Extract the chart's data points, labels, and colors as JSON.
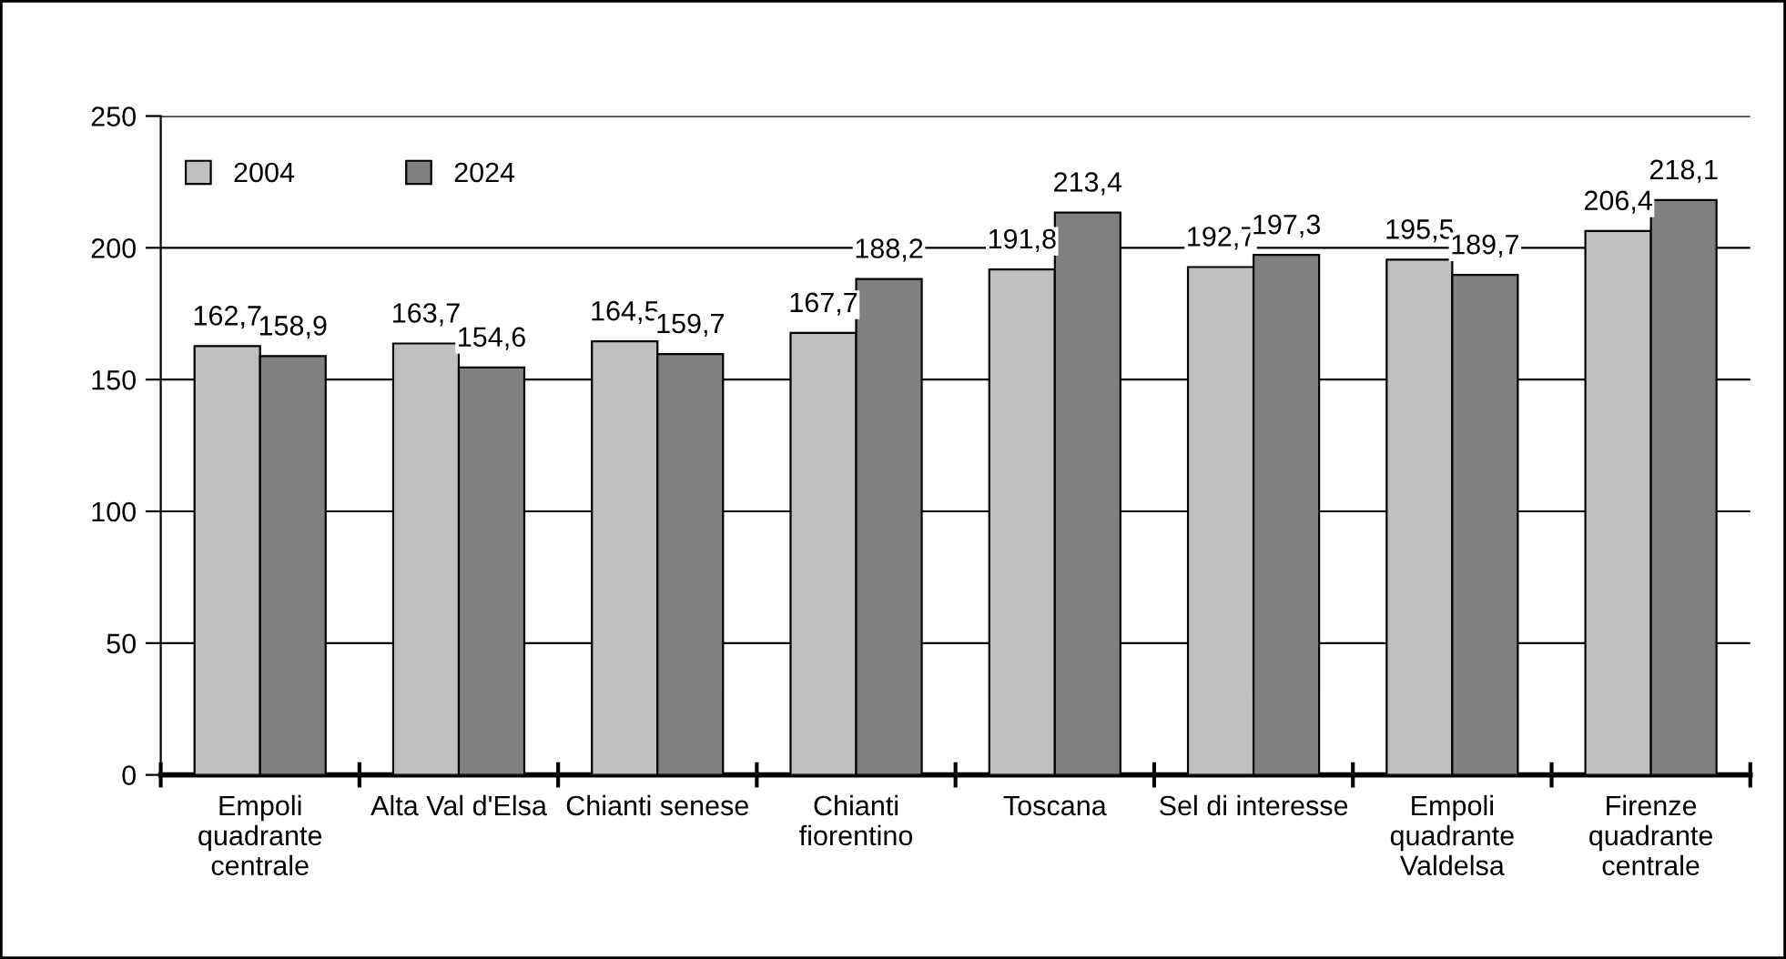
{
  "chart_data": {
    "type": "bar",
    "categories": [
      "Empoli\nquadrante\ncentrale",
      "Alta Val d'Elsa",
      "Chianti senese",
      "Chianti\nfiorentino",
      "Toscana",
      "Sel di interesse",
      "Empoli\nquadrante\nValdelsa",
      "Firenze\nquadrante\ncentrale"
    ],
    "series": [
      {
        "name": "2004",
        "color": "#c0c0c0",
        "values": [
          162.7,
          163.7,
          164.5,
          167.7,
          191.8,
          192.7,
          195.5,
          206.4
        ],
        "value_labels": [
          "162,7",
          "163,7",
          "164,5",
          "167,7",
          "191,8",
          "192,7",
          "195,5",
          "206,4"
        ]
      },
      {
        "name": "2024",
        "color": "#808080",
        "values": [
          158.9,
          154.6,
          159.7,
          188.2,
          213.4,
          197.3,
          189.7,
          218.1
        ],
        "value_labels": [
          "158,9",
          "154,6",
          "159,7",
          "188,2",
          "213,4",
          "197,3",
          "189,7",
          "218,1"
        ]
      }
    ],
    "ylim": [
      0,
      250
    ],
    "yticks": [
      0,
      50,
      100,
      150,
      200,
      250
    ],
    "grid": "y",
    "legend": "top left"
  }
}
